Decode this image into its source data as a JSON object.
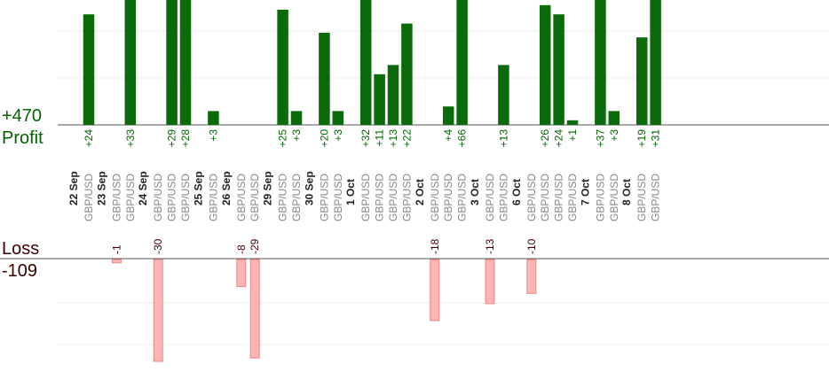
{
  "summary": {
    "profit_total": "+470",
    "profit_label": "Profit",
    "loss_label": "Loss",
    "loss_total": "-109"
  },
  "colors": {
    "profit_bar": "#0b6b0b",
    "profit_text": "#006400",
    "loss_bar": "#ffb3b3",
    "loss_text": "#3a0000",
    "pair_text": "#888888"
  },
  "chart_data": {
    "type": "bar",
    "ylim_profit": [
      0,
      25
    ],
    "ylim_loss": [
      -30,
      0
    ],
    "groups": [
      {
        "date": "22 Sep",
        "trades": [
          {
            "pair": "GBP/USD",
            "value": 24
          }
        ]
      },
      {
        "date": "23 Sep",
        "trades": [
          {
            "pair": "GBP/USD",
            "value": -1
          },
          {
            "pair": "GBP/USD",
            "value": 33
          }
        ]
      },
      {
        "date": "24 Sep",
        "trades": [
          {
            "pair": "GBP/USD",
            "value": -30
          },
          {
            "pair": "GBP/USD",
            "value": 29
          },
          {
            "pair": "GBP/USD",
            "value": 28
          }
        ]
      },
      {
        "date": "25 Sep",
        "trades": [
          {
            "pair": "GBP/USD",
            "value": 3
          }
        ]
      },
      {
        "date": "26 Sep",
        "trades": [
          {
            "pair": "GBP/USD",
            "value": -8
          },
          {
            "pair": "GBP/USD",
            "value": -29
          }
        ]
      },
      {
        "date": "29 Sep",
        "trades": [
          {
            "pair": "GBP/USD",
            "value": 25
          },
          {
            "pair": "GBP/USD",
            "value": 3
          }
        ]
      },
      {
        "date": "30 Sep",
        "trades": [
          {
            "pair": "GBP/USD",
            "value": 20
          },
          {
            "pair": "GBP/USD",
            "value": 3
          }
        ]
      },
      {
        "date": "1 Oct",
        "trades": [
          {
            "pair": "GBP/USD",
            "value": 32
          },
          {
            "pair": "GBP/USD",
            "value": 11
          },
          {
            "pair": "GBP/USD",
            "value": 13
          },
          {
            "pair": "GBP/USD",
            "value": 22
          }
        ]
      },
      {
        "date": "2 Oct",
        "trades": [
          {
            "pair": "GBP/USD",
            "value": -18
          },
          {
            "pair": "GBP/USD",
            "value": 4
          },
          {
            "pair": "GBP/USD",
            "value": 66
          }
        ]
      },
      {
        "date": "3 Oct",
        "trades": [
          {
            "pair": "GBP/USD",
            "value": -13
          },
          {
            "pair": "GBP/USD",
            "value": 13
          }
        ]
      },
      {
        "date": "6 Oct",
        "trades": [
          {
            "pair": "GBP/USD",
            "value": -10
          },
          {
            "pair": "GBP/USD",
            "value": 26
          },
          {
            "pair": "GBP/USD",
            "value": 24
          },
          {
            "pair": "GBP/USD",
            "value": 1
          }
        ]
      },
      {
        "date": "7 Oct",
        "trades": [
          {
            "pair": "GBP/USD",
            "value": 37
          },
          {
            "pair": "GBP/USD",
            "value": 3
          }
        ]
      },
      {
        "date": "8 Oct",
        "trades": [
          {
            "pair": "GBP/USD",
            "value": 19
          },
          {
            "pair": "GBP/USD",
            "value": 31
          }
        ]
      }
    ]
  }
}
